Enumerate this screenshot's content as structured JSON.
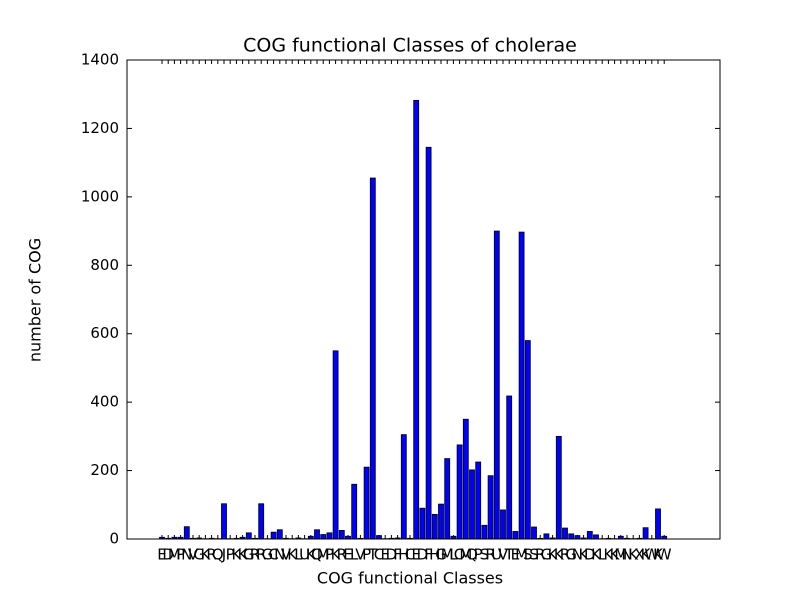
{
  "chart_data": {
    "type": "bar",
    "title": "COG functional Classes of cholerae",
    "x_label": "COG functional Classes",
    "y_label": "number of COG",
    "categories": [
      "E",
      "D",
      "M",
      "P",
      "N",
      "V",
      "G",
      "K",
      "R",
      "Q",
      "J",
      "P",
      "K",
      "K",
      "G",
      "R",
      "R",
      "G",
      "C",
      "N",
      "V",
      "K",
      "L",
      "U",
      "K",
      "Q",
      "M",
      "P",
      "K",
      "R",
      "E",
      "L",
      "V",
      "P",
      "T",
      "C",
      "E",
      "D",
      "F",
      "H",
      "C",
      "E",
      "D",
      "F",
      "H",
      "G",
      "M",
      "L",
      "O",
      "M",
      "Q",
      "P",
      "S",
      "R",
      "U",
      "V",
      "T",
      "E",
      "M",
      "S",
      "S",
      "R",
      "G",
      "K",
      "K",
      "R",
      "G",
      "N",
      "K",
      "D",
      "K",
      "L",
      "K",
      "K",
      "M",
      "N",
      "K",
      "X",
      "K",
      "W",
      "K",
      "W"
    ],
    "values": [
      5,
      2,
      5,
      5,
      36,
      2,
      3,
      1,
      2,
      1,
      103,
      1,
      2,
      5,
      18,
      2,
      103,
      1,
      20,
      27,
      2,
      1,
      3,
      1,
      8,
      27,
      13,
      18,
      550,
      25,
      8,
      160,
      2,
      210,
      1055,
      10,
      1,
      2,
      3,
      305,
      2,
      1282,
      90,
      1145,
      72,
      102,
      235,
      8,
      275,
      350,
      202,
      225,
      40,
      185,
      900,
      85,
      418,
      22,
      897,
      580,
      35,
      2,
      15,
      3,
      300,
      32,
      15,
      10,
      3,
      22,
      12,
      1,
      2,
      1,
      8,
      2,
      1,
      2,
      33,
      1,
      88,
      8
    ],
    "color": "#0000ff",
    "ylim": [
      0,
      1400
    ],
    "yticks": [
      0,
      200,
      400,
      600,
      800,
      1000,
      1200,
      1400
    ],
    "grid": false
  }
}
